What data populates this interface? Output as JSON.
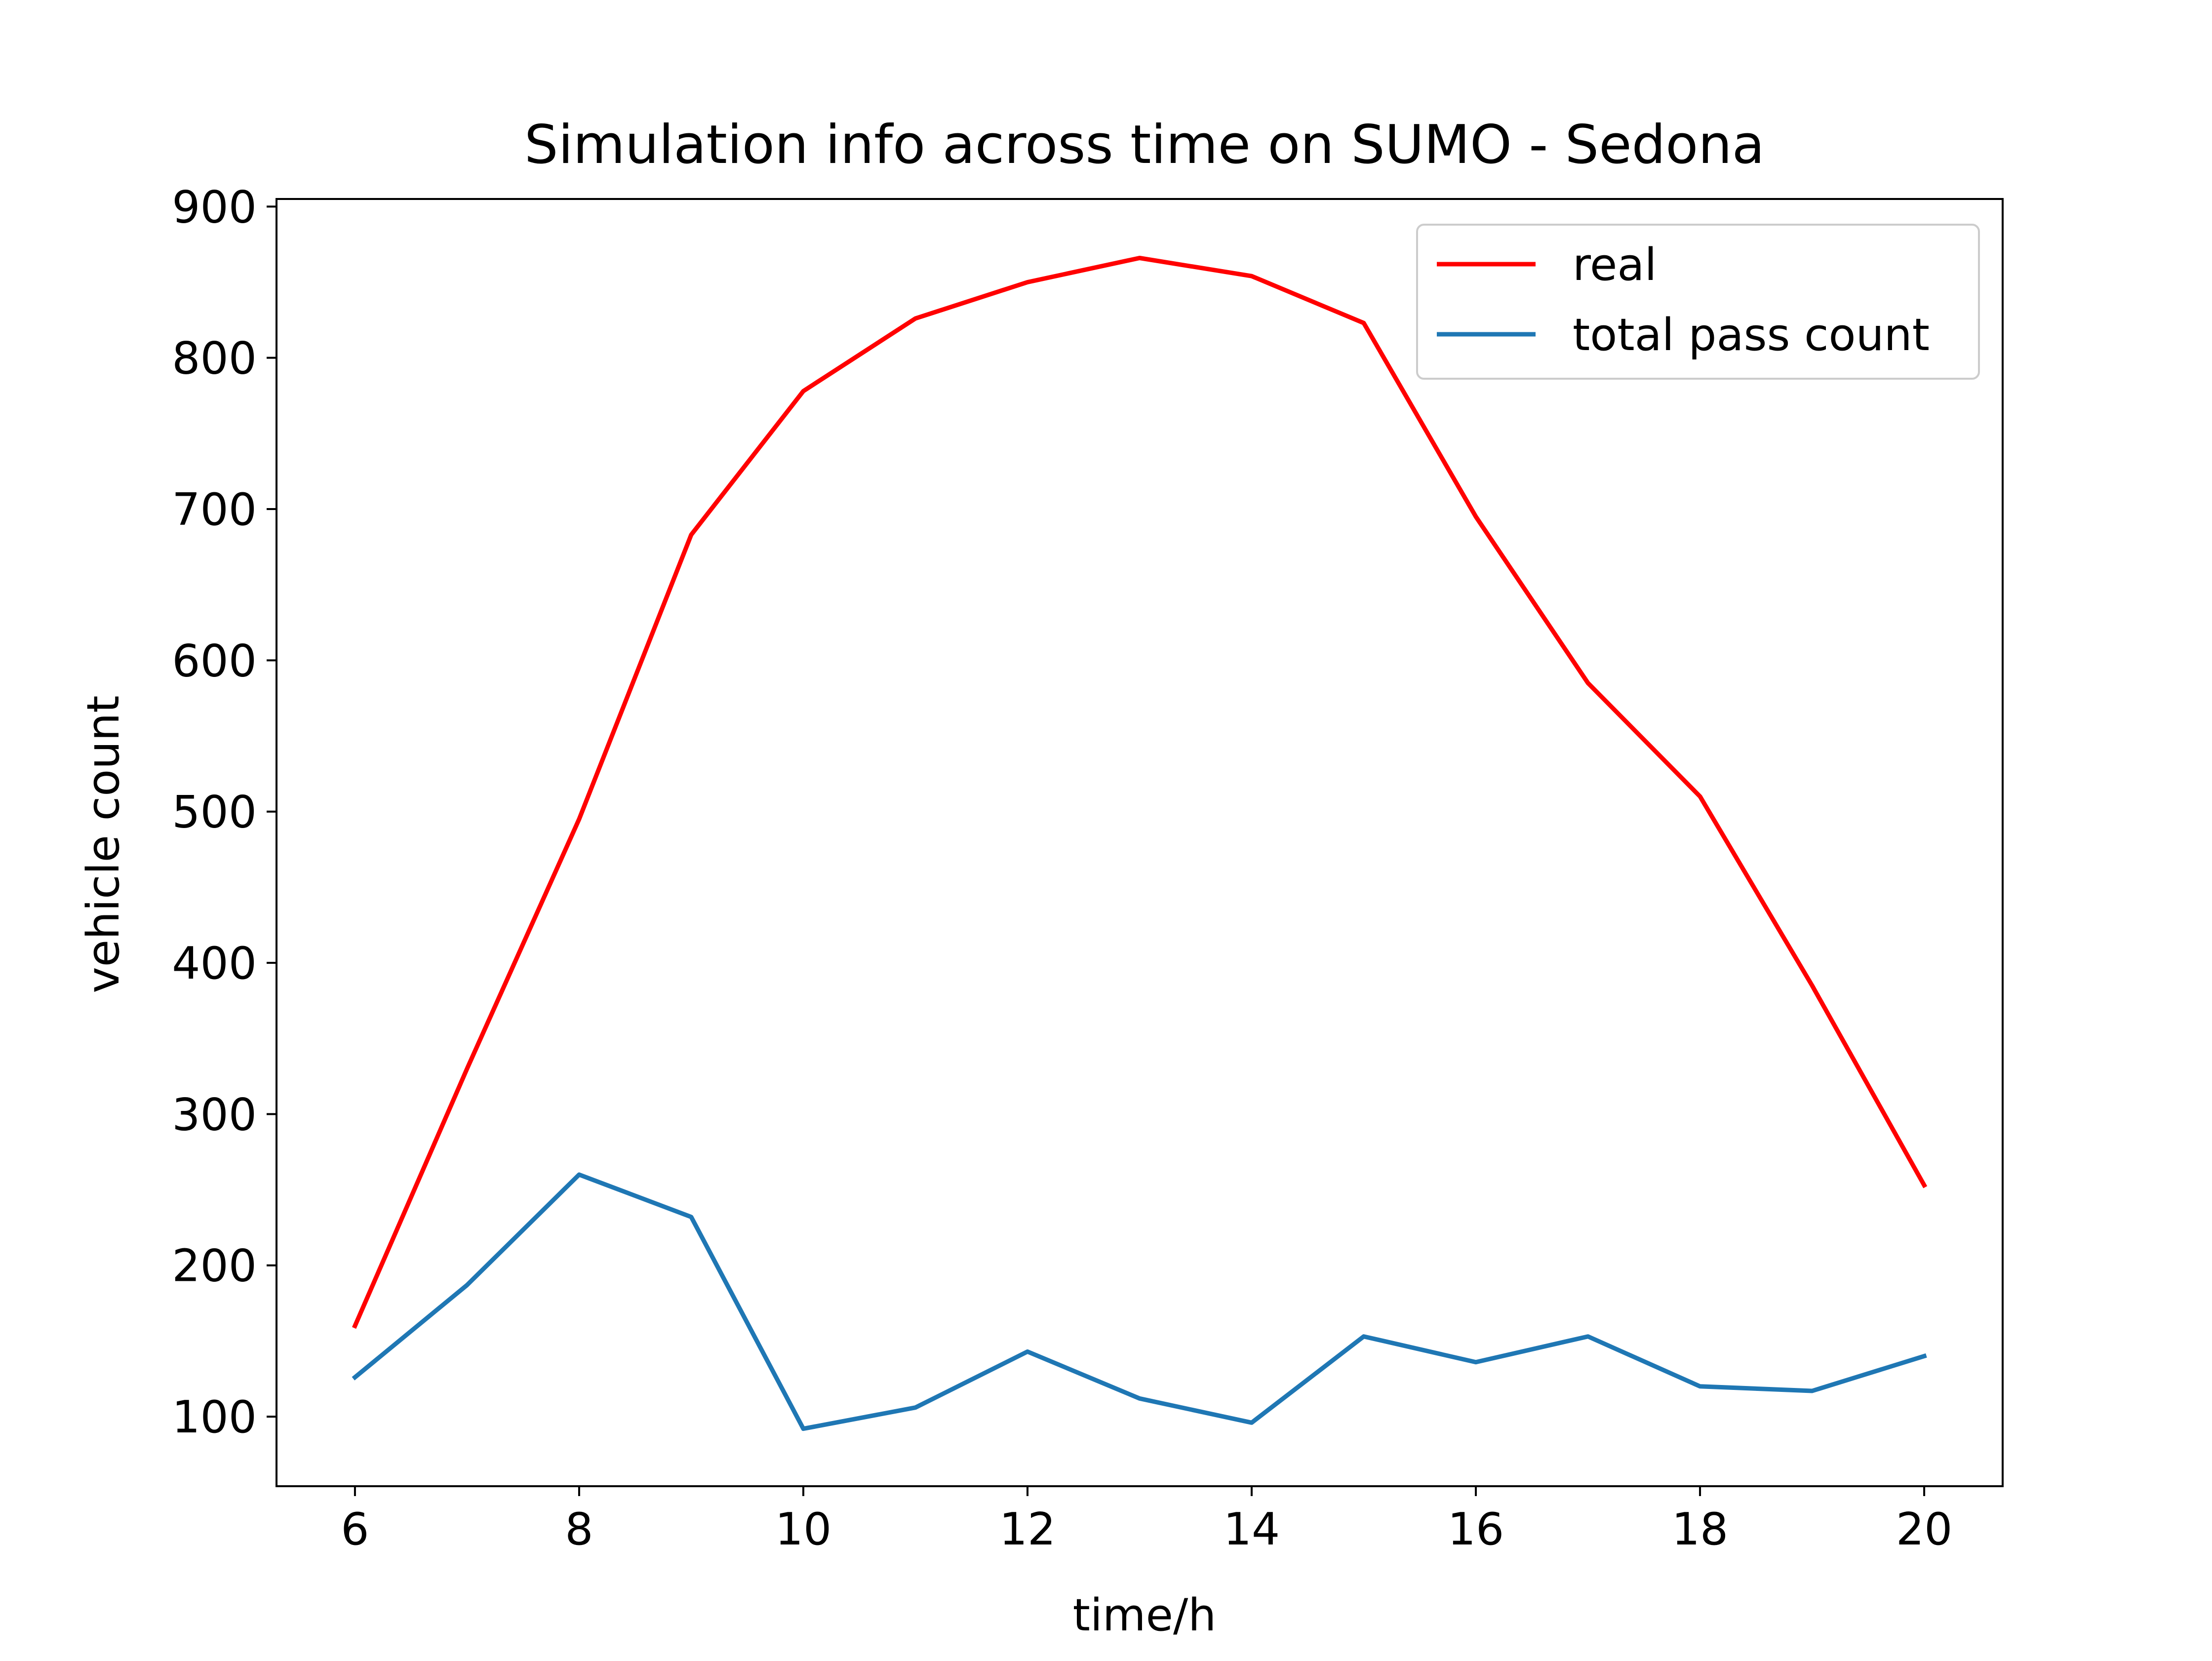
{
  "chart_data": {
    "type": "line",
    "title": "Simulation info across time on SUMO - Sedona",
    "xlabel": "time/h",
    "ylabel": "vehicle count",
    "xlim": [
      5.3,
      20.7
    ],
    "ylim": [
      54,
      905
    ],
    "xticks": [
      6,
      8,
      10,
      12,
      14,
      16,
      18,
      20
    ],
    "yticks": [
      100,
      200,
      300,
      400,
      500,
      600,
      700,
      800,
      900
    ],
    "grid": false,
    "legend_position": "upper right",
    "x": [
      6,
      7,
      8,
      9,
      10,
      11,
      12,
      13,
      14,
      15,
      16,
      17,
      18,
      19,
      20
    ],
    "series": [
      {
        "name": "real",
        "color": "#ff0000",
        "values": [
          160,
          330,
          495,
          683,
          778,
          826,
          850,
          866,
          854,
          823,
          695,
          585,
          510,
          385,
          253
        ]
      },
      {
        "name": "total pass count",
        "color": "#1f77b4",
        "values": [
          126,
          187,
          260,
          232,
          92,
          106,
          143,
          112,
          96,
          153,
          136,
          153,
          120,
          117,
          140
        ]
      }
    ]
  }
}
